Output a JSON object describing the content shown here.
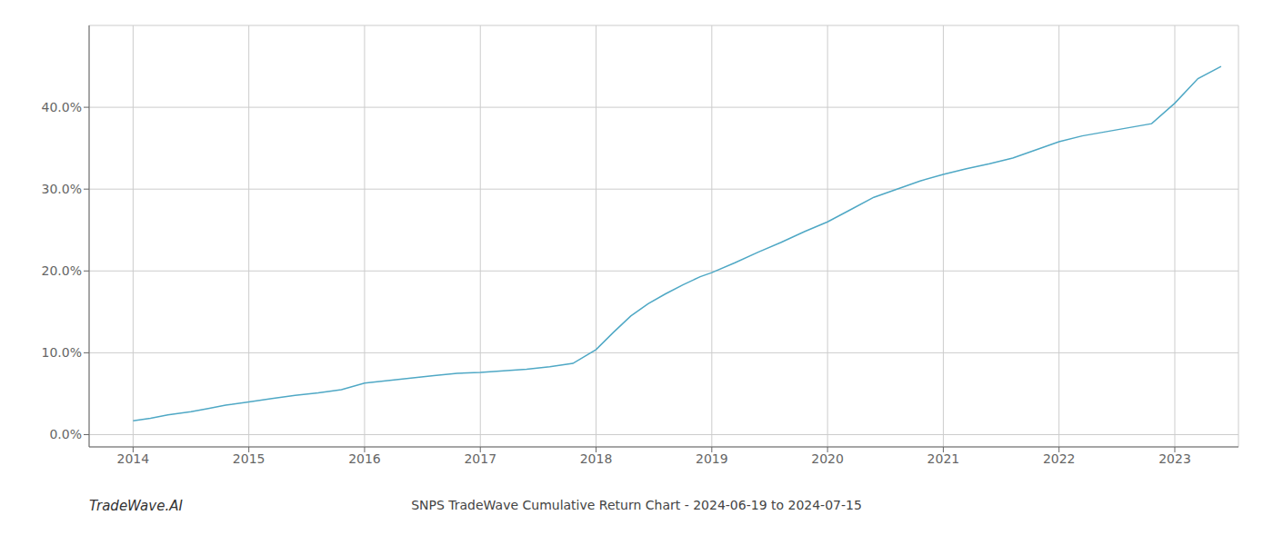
{
  "chart_data": {
    "type": "line",
    "title": "SNPS TradeWave Cumulative Return Chart - 2024-06-19 to 2024-07-15",
    "annotations": [
      "TradeWave.AI"
    ],
    "color": "#4fa8c5",
    "grid": true,
    "x": [
      2014.0,
      2014.15,
      2014.3,
      2014.5,
      2014.65,
      2014.8,
      2015.0,
      2015.2,
      2015.4,
      2015.6,
      2015.8,
      2016.0,
      2016.2,
      2016.4,
      2016.6,
      2016.8,
      2017.0,
      2017.2,
      2017.4,
      2017.6,
      2017.8,
      2018.0,
      2018.15,
      2018.3,
      2018.45,
      2018.6,
      2018.75,
      2018.9,
      2019.0,
      2019.2,
      2019.4,
      2019.6,
      2019.8,
      2020.0,
      2020.2,
      2020.4,
      2020.6,
      2020.8,
      2021.0,
      2021.2,
      2021.4,
      2021.6,
      2021.8,
      2022.0,
      2022.2,
      2022.4,
      2022.6,
      2022.8,
      2023.0,
      2023.2,
      2023.4
    ],
    "values": [
      1.7,
      2.0,
      2.4,
      2.8,
      3.2,
      3.6,
      4.0,
      4.4,
      4.8,
      5.1,
      5.5,
      6.3,
      6.6,
      6.9,
      7.2,
      7.5,
      7.6,
      7.8,
      8.0,
      8.3,
      8.7,
      10.4,
      12.5,
      14.5,
      16.0,
      17.2,
      18.3,
      19.3,
      19.8,
      21.0,
      22.3,
      23.5,
      24.8,
      26.0,
      27.5,
      29.0,
      30.0,
      31.0,
      31.8,
      32.5,
      33.1,
      33.8,
      34.8,
      35.8,
      36.5,
      37.0,
      37.5,
      38.0,
      40.5,
      43.5,
      45.0
    ],
    "xlim": [
      2013.62,
      2023.55
    ],
    "xticks": [
      2014,
      2015,
      2016,
      2017,
      2018,
      2019,
      2020,
      2021,
      2022,
      2023
    ],
    "ylim": [
      -1.5,
      50
    ],
    "yticks": [
      {
        "value": 0,
        "label": "0.0%"
      },
      {
        "value": 10,
        "label": "10.0%"
      },
      {
        "value": 20,
        "label": "20.0%"
      },
      {
        "value": 30,
        "label": "30.0%"
      },
      {
        "value": 40,
        "label": "40.0%"
      }
    ]
  }
}
